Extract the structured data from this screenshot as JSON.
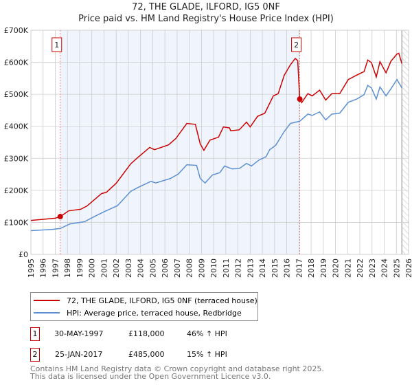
{
  "chart_data": {
    "type": "line",
    "title": "72, THE GLADE, ILFORD, IG5 0NF",
    "subtitle": "Price paid vs. HM Land Registry's House Price Index (HPI)",
    "xlim": [
      1995,
      2026
    ],
    "ylim": [
      0,
      700000
    ],
    "x_ticks": [
      "1995",
      "1996",
      "1997",
      "1998",
      "1999",
      "2000",
      "2001",
      "2002",
      "2003",
      "2004",
      "2005",
      "2006",
      "2007",
      "2008",
      "2009",
      "2010",
      "2011",
      "2012",
      "2013",
      "2014",
      "2015",
      "2016",
      "2017",
      "2018",
      "2019",
      "2020",
      "2021",
      "2022",
      "2023",
      "2024",
      "2025",
      "2026"
    ],
    "y_ticks": [
      {
        "v": 0,
        "label": "£0"
      },
      {
        "v": 100000,
        "label": "£100K"
      },
      {
        "v": 200000,
        "label": "£200K"
      },
      {
        "v": 300000,
        "label": "£300K"
      },
      {
        "v": 400000,
        "label": "£400K"
      },
      {
        "v": 500000,
        "label": "£500K"
      },
      {
        "v": 600000,
        "label": "£600K"
      },
      {
        "v": 700000,
        "label": "£700K"
      }
    ],
    "grid": true,
    "series": [
      {
        "name": "72, THE GLADE, ILFORD, IG5 0NF (terraced house)",
        "color": "#cc0000",
        "points": [
          [
            1995.0,
            106
          ],
          [
            1997.0,
            113
          ],
          [
            1997.41,
            118
          ],
          [
            1998.1,
            136
          ],
          [
            1999.1,
            141
          ],
          [
            1999.6,
            151
          ],
          [
            2000.8,
            190
          ],
          [
            2001.2,
            194
          ],
          [
            2002.0,
            222
          ],
          [
            2003.2,
            283
          ],
          [
            2003.85,
            305
          ],
          [
            2004.75,
            334
          ],
          [
            2005.15,
            327
          ],
          [
            2006.3,
            342
          ],
          [
            2006.9,
            362
          ],
          [
            2007.8,
            409
          ],
          [
            2008.5,
            406
          ],
          [
            2008.9,
            345
          ],
          [
            2009.2,
            325
          ],
          [
            2009.7,
            357
          ],
          [
            2010.4,
            366
          ],
          [
            2010.8,
            398
          ],
          [
            2011.3,
            395
          ],
          [
            2011.4,
            386
          ],
          [
            2012.1,
            389
          ],
          [
            2012.7,
            413
          ],
          [
            2013.0,
            398
          ],
          [
            2013.6,
            431
          ],
          [
            2014.2,
            441
          ],
          [
            2014.9,
            495
          ],
          [
            2015.3,
            502
          ],
          [
            2015.8,
            560
          ],
          [
            2016.3,
            592
          ],
          [
            2016.7,
            612
          ],
          [
            2016.9,
            605
          ],
          [
            2017.07,
            485
          ],
          [
            2017.23,
            474
          ],
          [
            2017.73,
            502
          ],
          [
            2018.1,
            495
          ],
          [
            2018.7,
            513
          ],
          [
            2019.2,
            482
          ],
          [
            2019.7,
            502
          ],
          [
            2020.35,
            502
          ],
          [
            2021.05,
            546
          ],
          [
            2021.75,
            560
          ],
          [
            2022.35,
            571
          ],
          [
            2022.65,
            607
          ],
          [
            2022.95,
            599
          ],
          [
            2023.35,
            554
          ],
          [
            2023.65,
            602
          ],
          [
            2024.15,
            567
          ],
          [
            2024.55,
            603
          ],
          [
            2025.05,
            626
          ],
          [
            2025.2,
            628
          ],
          [
            2025.45,
            596
          ]
        ]
      },
      {
        "name": "HPI: Average price, terraced house, Redbridge",
        "color": "#5b8fd4",
        "points": [
          [
            1995.0,
            74
          ],
          [
            1996.8,
            78
          ],
          [
            1997.41,
            81
          ],
          [
            1998.2,
            95
          ],
          [
            1999.4,
            102
          ],
          [
            2000.2,
            118
          ],
          [
            2001.0,
            133
          ],
          [
            2002.1,
            152
          ],
          [
            2003.2,
            197
          ],
          [
            2003.85,
            210
          ],
          [
            2004.85,
            228
          ],
          [
            2005.25,
            223
          ],
          [
            2006.45,
            237
          ],
          [
            2007.1,
            251
          ],
          [
            2007.8,
            280
          ],
          [
            2008.6,
            278
          ],
          [
            2008.9,
            237
          ],
          [
            2009.3,
            223
          ],
          [
            2009.9,
            248
          ],
          [
            2010.5,
            255
          ],
          [
            2010.9,
            276
          ],
          [
            2011.5,
            267
          ],
          [
            2012.1,
            268
          ],
          [
            2012.7,
            284
          ],
          [
            2013.1,
            276
          ],
          [
            2013.7,
            294
          ],
          [
            2014.3,
            305
          ],
          [
            2014.6,
            327
          ],
          [
            2015.1,
            341
          ],
          [
            2015.8,
            384
          ],
          [
            2016.3,
            409
          ],
          [
            2017.07,
            416
          ],
          [
            2017.73,
            438
          ],
          [
            2018.1,
            434
          ],
          [
            2018.7,
            445
          ],
          [
            2019.2,
            420
          ],
          [
            2019.7,
            438
          ],
          [
            2020.35,
            441
          ],
          [
            2021.05,
            475
          ],
          [
            2021.75,
            485
          ],
          [
            2022.35,
            499
          ],
          [
            2022.65,
            528
          ],
          [
            2022.95,
            520
          ],
          [
            2023.35,
            485
          ],
          [
            2023.65,
            523
          ],
          [
            2024.15,
            495
          ],
          [
            2024.55,
            517
          ],
          [
            2025.05,
            546
          ],
          [
            2025.45,
            520
          ]
        ]
      }
    ],
    "value_unit": "thousands GBP",
    "sales": [
      {
        "label": "1",
        "date": "30-MAY-1997",
        "year": 1997.41,
        "price": "£118,000",
        "value": 118,
        "hpi": "46% ↑ HPI"
      },
      {
        "label": "2",
        "date": "25-JAN-2017",
        "year": 2017.07,
        "price": "£485,000",
        "value": 485,
        "hpi": "15% ↑ HPI"
      }
    ],
    "shaded_range": [
      1997.41,
      2017.07
    ],
    "hatched_from": 2025.45,
    "legend_placement": "below"
  },
  "footer": {
    "line1": "Contains HM Land Registry data © Crown copyright and database right 2025.",
    "line2": "This data is licensed under the Open Government Licence v3.0."
  }
}
